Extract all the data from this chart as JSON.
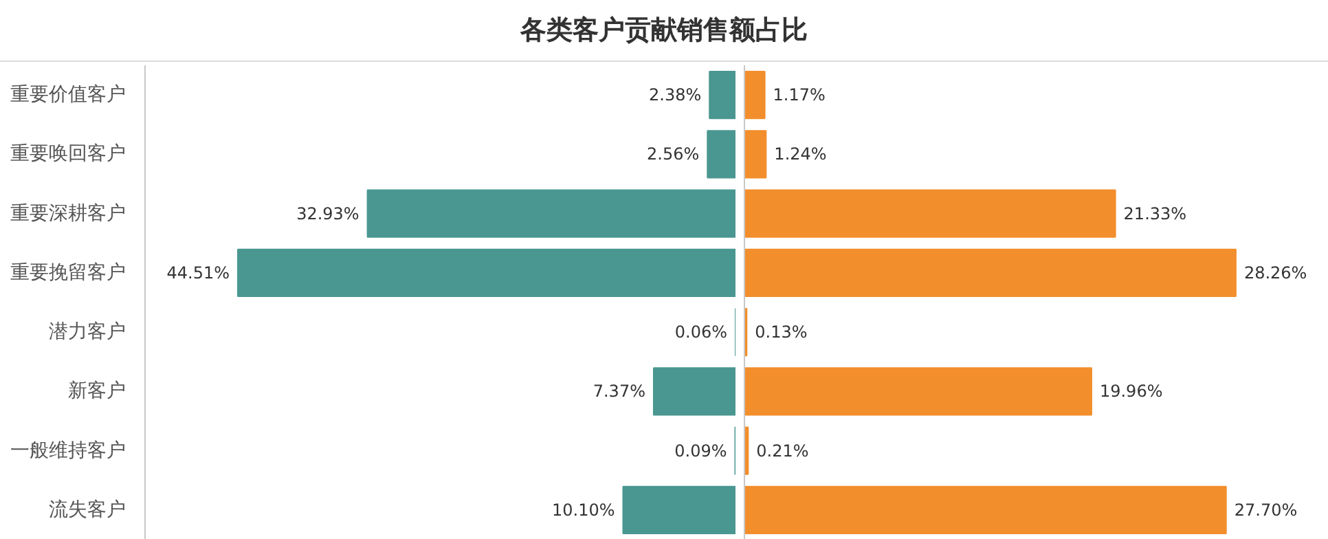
{
  "chart_data": [
    {
      "type": "bar",
      "title": "各类客户贡献销售额占比",
      "orientation": "horizontal",
      "categories": [
        "重要价值客户",
        "重要唤回客户",
        "重要深耕客户",
        "重要挽留客户",
        "潜力客户",
        "新客户",
        "一般维持客户",
        "流失客户"
      ],
      "color": "#4a9791",
      "values": [
        2.38,
        2.56,
        32.93,
        44.51,
        0.06,
        7.37,
        0.09,
        10.1
      ],
      "value_labels": [
        "2.38%",
        "2.56%",
        "32.93%",
        "44.51%",
        "0.06%",
        "7.37%",
        "0.09%",
        "10.10%"
      ],
      "xlim": [
        52.8,
        0
      ],
      "tick_labels": "y"
    },
    {
      "type": "bar",
      "orientation": "horizontal",
      "categories": [
        null,
        null,
        null,
        null,
        null,
        null,
        null,
        null
      ],
      "color": "#f28e2c",
      "values": [
        1.17,
        1.24,
        21.33,
        28.26,
        0.13,
        19.96,
        0.21,
        27.7
      ],
      "value_labels": [
        "1.17%",
        "1.24%",
        "21.33%",
        "28.26%",
        "0.13%",
        "19.96%",
        "0.21%",
        "27.70%"
      ],
      "xlim": [
        0,
        33.6
      ],
      "tick_labels": false
    }
  ]
}
